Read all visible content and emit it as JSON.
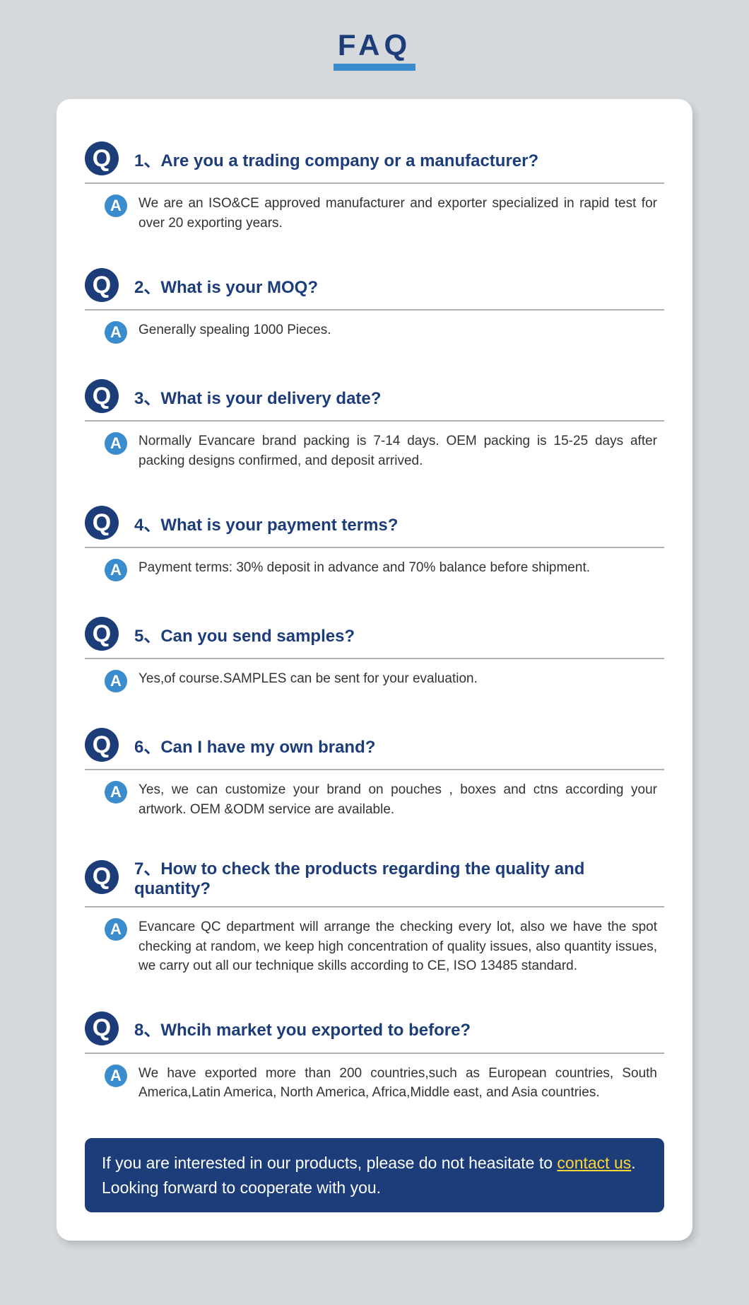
{
  "title": "FAQ",
  "colors": {
    "page_bg": "#d5d9dc",
    "card_bg": "#ffffff",
    "primary": "#1c3d7a",
    "accent": "#3a8ccc",
    "underline": "#3a8ccc",
    "divider": "#b0b0b0",
    "answer_text": "#333333",
    "footer_bg": "#1c3d7a",
    "footer_text": "#ffffff",
    "link": "#ffd633"
  },
  "typography": {
    "title_fontsize": 42,
    "question_fontsize": 24,
    "answer_fontsize": 19,
    "footer_fontsize": 23,
    "font_family": "Arial"
  },
  "badges": {
    "q_label": "Q",
    "a_label": "A",
    "q_size": 48,
    "a_size": 32
  },
  "faqs": [
    {
      "q": "1、Are you a trading company or a manufacturer?",
      "a": "We are an ISO&CE approved manufacturer and exporter specialized in rapid test for over 20 exporting years."
    },
    {
      "q": "2、What is your MOQ?",
      "a": "Generally spealing 1000 Pieces."
    },
    {
      "q": "3、What is your delivery date?",
      "a": "Normally Evancare brand packing is 7-14 days.  OEM packing is 15-25 days after packing designs confirmed, and deposit arrived."
    },
    {
      "q": "4、What is your payment terms?",
      "a": "Payment terms: 30% deposit in advance and 70% balance before shipment."
    },
    {
      "q": "5、Can you send samples?",
      "a": "Yes,of course.SAMPLES can be sent for your evaluation."
    },
    {
      "q": "6、Can I have my own brand?",
      "a": "Yes, we can customize your brand on pouches , boxes and ctns according your artwork.  OEM &ODM service are available."
    },
    {
      "q": "7、How to check the products regarding the quality and quantity?",
      "a": "Evancare QC department will arrange the checking every lot, also we have the spot checking at random, we keep high concentration of quality issues, also quantity issues,  we carry out all our technique skills according to  CE, ISO 13485 standard."
    },
    {
      "q": "8、Whcih market you exported to before?",
      "a": "We have exported more than 200 countries,such as European countries, South America,Latin America, North America, Africa,Middle east, and Asia countries."
    }
  ],
  "footer": {
    "prefix": "If you are interested in our products, please do not heasitate to ",
    "link_text": "contact us",
    "suffix": ". Looking forward to cooperate with you."
  }
}
